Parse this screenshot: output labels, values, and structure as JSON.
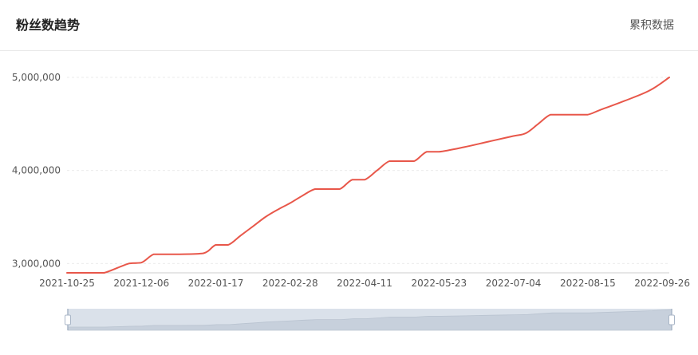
{
  "header": {
    "title": "粉丝数趋势",
    "mode_label": "累积数据"
  },
  "colors": {
    "line": "#e8574a",
    "grid": "#ebebeb",
    "axis": "#cccccc",
    "zoom_bg": "#dae1ea",
    "zoom_area": "#c7d0dc"
  },
  "chart_data": {
    "type": "line",
    "title": "",
    "xlabel": "",
    "ylabel": "",
    "x_ticks": [
      "2021-10-25",
      "2021-12-06",
      "2022-01-17",
      "2022-02-28",
      "2022-04-11",
      "2022-05-23",
      "2022-07-04",
      "2022-08-15",
      "2022-09-26"
    ],
    "y_ticks": [
      "3,000,000",
      "4,000,000",
      "5,000,000"
    ],
    "ylim": [
      2900000,
      5000000
    ],
    "xlim": [
      "2021-10-25",
      "2022-09-30"
    ],
    "grid": true,
    "series": [
      {
        "x": [
          "2021-10-25",
          "2021-11-08",
          "2021-11-15",
          "2021-11-29",
          "2021-12-06",
          "2021-12-13",
          "2021-12-20",
          "2021-12-27",
          "2022-01-10",
          "2022-01-17",
          "2022-01-24",
          "2022-01-31",
          "2022-02-07",
          "2022-02-14",
          "2022-02-21",
          "2022-02-28",
          "2022-03-07",
          "2022-03-14",
          "2022-03-21",
          "2022-03-28",
          "2022-04-04",
          "2022-04-11",
          "2022-04-18",
          "2022-04-25",
          "2022-05-02",
          "2022-05-09",
          "2022-05-16",
          "2022-05-23",
          "2022-06-06",
          "2022-06-20",
          "2022-07-04",
          "2022-07-11",
          "2022-07-18",
          "2022-07-25",
          "2022-08-01",
          "2022-08-08",
          "2022-08-15",
          "2022-08-22",
          "2022-09-05",
          "2022-09-19",
          "2022-09-30"
        ],
        "values": [
          2900000,
          2900000,
          2900000,
          3000000,
          3010000,
          3100000,
          3100000,
          3100000,
          3110000,
          3200000,
          3200000,
          3300000,
          3400000,
          3500000,
          3580000,
          3650000,
          3730000,
          3800000,
          3800000,
          3800000,
          3900000,
          3900000,
          4000000,
          4100000,
          4100000,
          4100000,
          4200000,
          4200000,
          4250000,
          4310000,
          4370000,
          4400000,
          4500000,
          4600000,
          4600000,
          4600000,
          4600000,
          4650000,
          4750000,
          4860000,
          5000000
        ]
      }
    ]
  }
}
